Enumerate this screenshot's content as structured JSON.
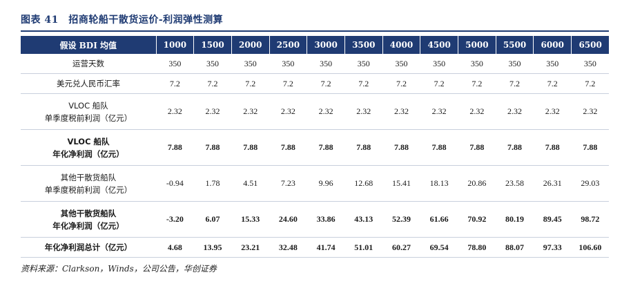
{
  "title": "图表 41　招商轮船干散货运价-利润弹性测算",
  "header": {
    "label": "假设 BDI 均值",
    "values": [
      "1000",
      "1500",
      "2000",
      "2500",
      "3000",
      "3500",
      "4000",
      "4500",
      "5000",
      "5500",
      "6000",
      "6500"
    ]
  },
  "rows": [
    {
      "label1": "运营天数",
      "label2": "",
      "bold": false,
      "values": [
        "350",
        "350",
        "350",
        "350",
        "350",
        "350",
        "350",
        "350",
        "350",
        "350",
        "350",
        "350"
      ]
    },
    {
      "label1": "美元兑人民币汇率",
      "label2": "",
      "bold": false,
      "values": [
        "7.2",
        "7.2",
        "7.2",
        "7.2",
        "7.2",
        "7.2",
        "7.2",
        "7.2",
        "7.2",
        "7.2",
        "7.2",
        "7.2"
      ]
    },
    {
      "label1": "VLOC 船队",
      "label2": "单季度税前利润（亿元）",
      "bold": false,
      "values": [
        "2.32",
        "2.32",
        "2.32",
        "2.32",
        "2.32",
        "2.32",
        "2.32",
        "2.32",
        "2.32",
        "2.32",
        "2.32",
        "2.32"
      ]
    },
    {
      "label1": "VLOC 船队",
      "label2": "年化净利润（亿元）",
      "bold": true,
      "values": [
        "7.88",
        "7.88",
        "7.88",
        "7.88",
        "7.88",
        "7.88",
        "7.88",
        "7.88",
        "7.88",
        "7.88",
        "7.88",
        "7.88"
      ]
    },
    {
      "label1": "其他干散货船队",
      "label2": "单季度税前利润（亿元）",
      "bold": false,
      "values": [
        "-0.94",
        "1.78",
        "4.51",
        "7.23",
        "9.96",
        "12.68",
        "15.41",
        "18.13",
        "20.86",
        "23.58",
        "26.31",
        "29.03"
      ]
    },
    {
      "label1": "其他干散货船队",
      "label2": "年化净利润（亿元）",
      "bold": true,
      "values": [
        "-3.20",
        "6.07",
        "15.33",
        "24.60",
        "33.86",
        "43.13",
        "52.39",
        "61.66",
        "70.92",
        "80.19",
        "89.45",
        "98.72"
      ]
    },
    {
      "label1": "年化净利润总计（亿元）",
      "label2": "",
      "bold": true,
      "values": [
        "4.68",
        "13.95",
        "23.21",
        "32.48",
        "41.74",
        "51.01",
        "60.27",
        "69.54",
        "78.80",
        "88.07",
        "97.33",
        "106.60"
      ]
    }
  ],
  "source": "资料来源：Clarkson，Winds，公司公告，华创证券"
}
